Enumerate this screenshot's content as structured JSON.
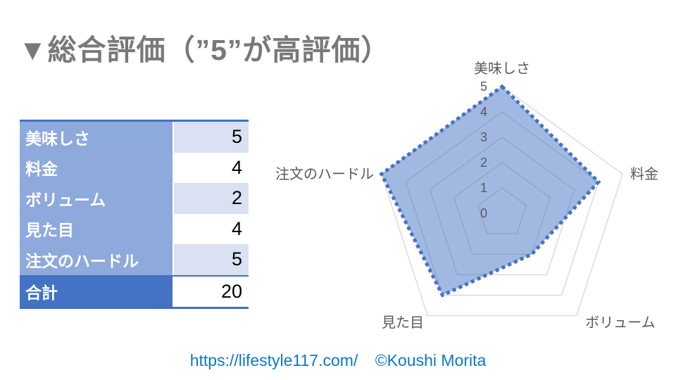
{
  "title": {
    "text": "▼総合評価（”5”が高評価）"
  },
  "table": {
    "rows": [
      {
        "label": "美味しさ",
        "value": "5"
      },
      {
        "label": "料金",
        "value": "4"
      },
      {
        "label": "ボリューム",
        "value": "2"
      },
      {
        "label": "見た目",
        "value": "4"
      },
      {
        "label": "注文のハードル",
        "value": "5"
      }
    ],
    "total": {
      "label": "合計",
      "value": "20"
    }
  },
  "chart_data": {
    "type": "radar",
    "categories": [
      "美味しさ",
      "料金",
      "ボリューム",
      "見た目",
      "注文のハードル"
    ],
    "values": [
      5,
      4,
      2,
      4,
      5
    ],
    "axis_ticks": [
      "0",
      "1",
      "2",
      "3",
      "4",
      "5"
    ],
    "axis_range": [
      0,
      5
    ],
    "grid": true,
    "legend": "none",
    "fill_color": "#4472C4",
    "fill_opacity": 0.5,
    "line_color": "#4472C4",
    "line_style": "dotted",
    "grid_color": "#D9D9D9",
    "label_color": "#595959"
  },
  "footer": {
    "url": "https://lifestyle117.com/",
    "credit": "©Koushi Morita",
    "color": "#0d78c5"
  },
  "colors": {
    "title_gray": "#7b7878",
    "table_header_blue": "#8EA9DB",
    "table_band_blue": "#D9E1F2",
    "table_total_blue": "#4472C4",
    "table_border_blue": "#4470bf"
  }
}
